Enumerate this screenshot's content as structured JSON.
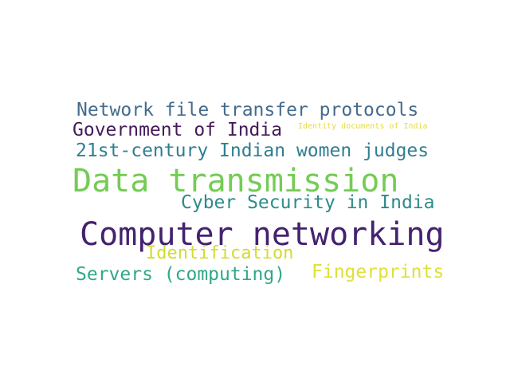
{
  "words": [
    {
      "text": "Network file transfer protocols",
      "color": "#456b8b"
    },
    {
      "text": "Government of India",
      "color": "#451a5a"
    },
    {
      "text": "Identity documents of India",
      "color": "#e6dc3a"
    },
    {
      "text": "21st-century Indian women judges",
      "color": "#2f7f8f"
    },
    {
      "text": "Data transmission",
      "color": "#74cc55"
    },
    {
      "text": "Cyber Security in India",
      "color": "#2d8b8b"
    },
    {
      "text": "Computer networking",
      "color": "#45226e"
    },
    {
      "text": "Identification",
      "color": "#d2dc2e"
    },
    {
      "text": "Servers (computing)",
      "color": "#2fa888"
    },
    {
      "text": "Fingerprints",
      "color": "#dfe03a"
    }
  ]
}
